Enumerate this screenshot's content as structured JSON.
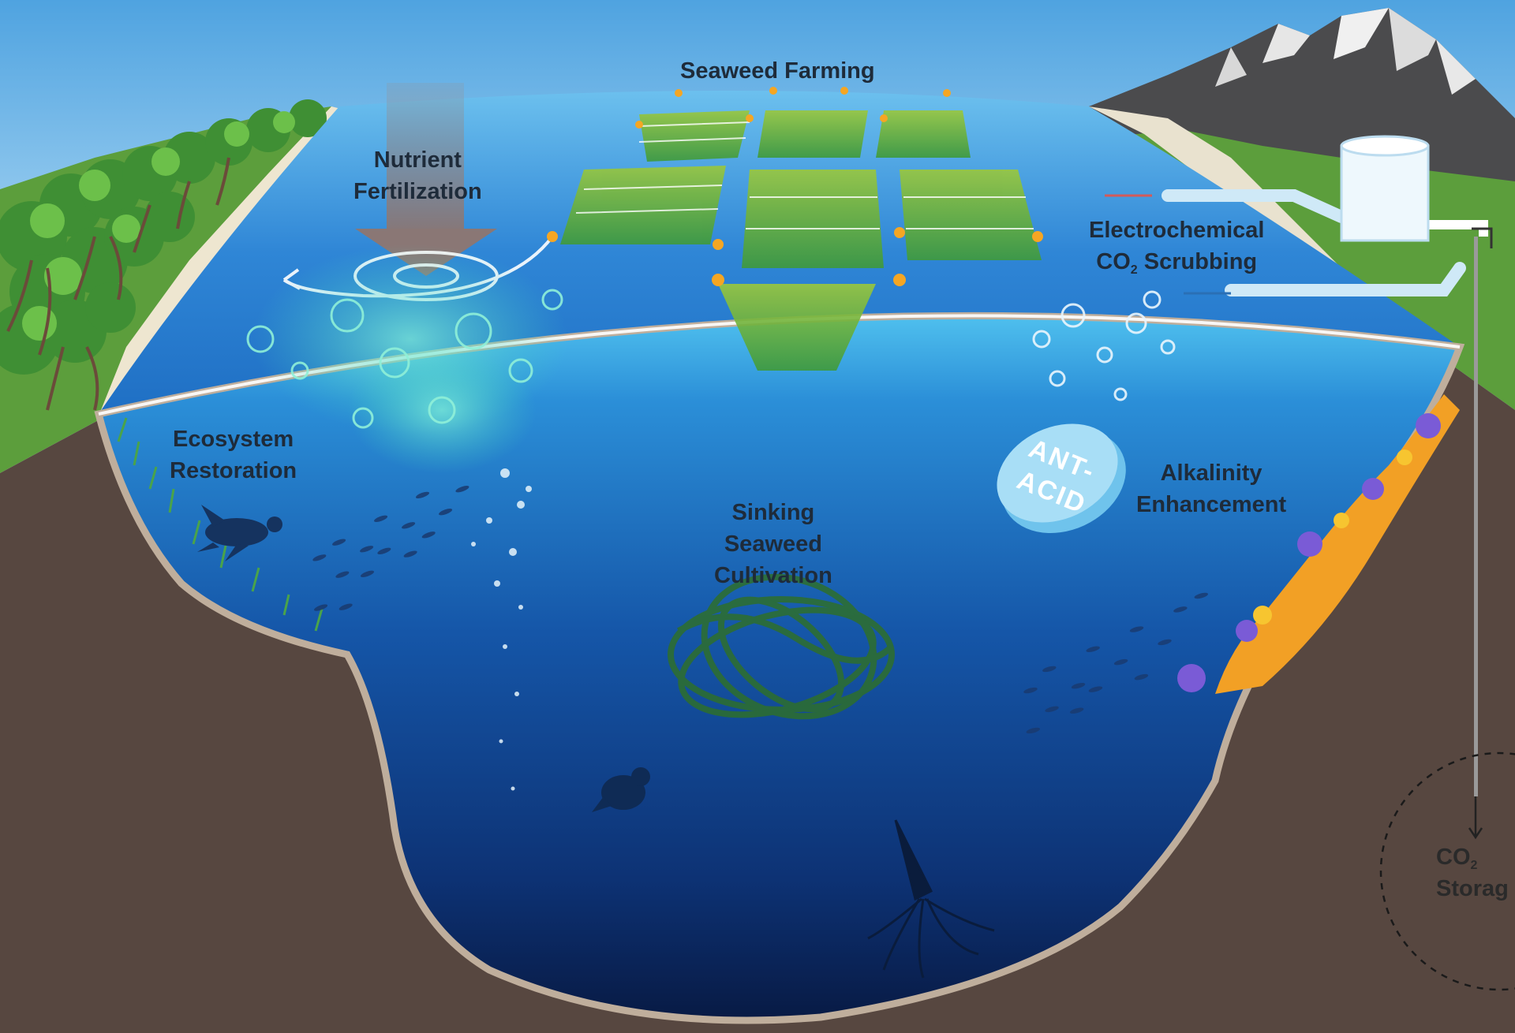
{
  "colors": {
    "sky_top": "#5aa9e3",
    "sky_bottom": "#d9eef9",
    "ocean_surface": "#2f86d6",
    "ocean_deep": "#0a1f4e",
    "earth": "#574740",
    "earth_edge": "#bfae9c",
    "grass": "#5c9e3c",
    "mountain": "#4a4a4a",
    "seaweed": "#7bb33c",
    "buoy": "#f5a623",
    "label_text": "#1e2b3a"
  },
  "labels": {
    "seaweed_farming": "Seaweed Farming",
    "nutrient_fertilization": [
      "Nutrient",
      "Fertilization"
    ],
    "electrochemical_scrubbing": {
      "line1": "Electrochemical",
      "co2_prefix": "CO",
      "co2_subscript": "2",
      "line2_rest": " Scrubbing"
    },
    "ecosystem_restoration": [
      "Ecosystem",
      "Restoration"
    ],
    "alkalinity_enhancement": [
      "Alkalinity",
      "Enhancement"
    ],
    "sinking_seaweed": [
      "Sinking",
      "Seaweed",
      "Cultivation"
    ],
    "co2_storage": {
      "co2_prefix": "CO",
      "co2_subscript": "2",
      "line2": "Storag"
    },
    "antacid_line1": "ANT-",
    "antacid_line2": "ACID"
  },
  "icons": [
    "mangrove-trees-icon",
    "mountain-icon",
    "storage-tank-icon",
    "sea-turtle-icon",
    "fish-school-icon",
    "seal-icon",
    "squid-icon",
    "coral-reef-icon",
    "antacid-tablet-icon",
    "down-arrow-icon",
    "swirl-icon",
    "seaweed-raft-icon",
    "seaweed-tangle-icon",
    "pipe-icon"
  ]
}
